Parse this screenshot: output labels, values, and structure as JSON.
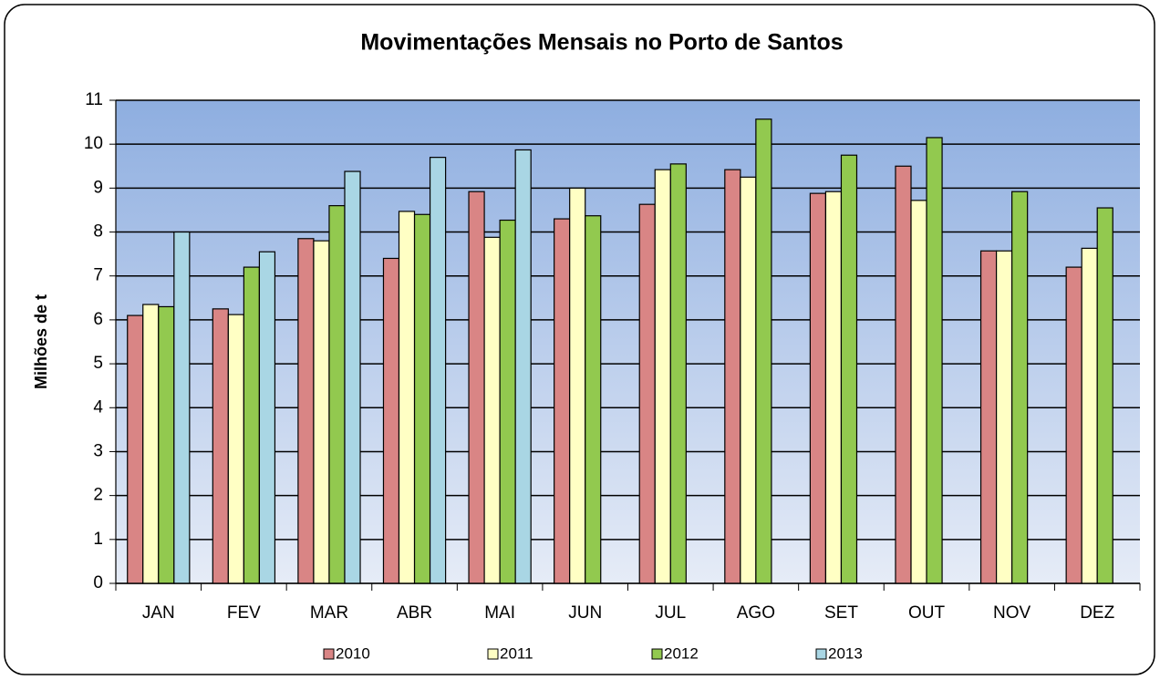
{
  "chart_data": {
    "type": "bar",
    "title": "Movimentações Mensais no Porto de Santos",
    "y_label": "Milhões de t",
    "categories": [
      "JAN",
      "FEV",
      "MAR",
      "ABR",
      "MAI",
      "JUN",
      "JUL",
      "AGO",
      "SET",
      "OUT",
      "NOV",
      "DEZ"
    ],
    "series": [
      {
        "name": "2010",
        "color": "#d98585",
        "values": [
          6.1,
          6.25,
          7.85,
          7.4,
          8.92,
          8.3,
          8.63,
          9.42,
          8.88,
          9.5,
          7.57,
          7.2
        ]
      },
      {
        "name": "2011",
        "color": "#ffffc4",
        "values": [
          6.35,
          6.12,
          7.8,
          8.47,
          7.88,
          9.0,
          9.42,
          9.25,
          8.92,
          8.72,
          7.57,
          7.63
        ]
      },
      {
        "name": "2012",
        "color": "#92c94f",
        "values": [
          6.3,
          7.2,
          8.6,
          8.4,
          8.27,
          8.37,
          9.55,
          10.57,
          9.75,
          10.15,
          8.92,
          8.55
        ]
      },
      {
        "name": "2013",
        "color": "#a9d6e4",
        "values": [
          8.0,
          7.55,
          9.38,
          9.7,
          9.87,
          null,
          null,
          null,
          null,
          null,
          null,
          null
        ]
      }
    ],
    "ylim": [
      0,
      11
    ],
    "yticks": [
      0,
      1,
      2,
      3,
      4,
      5,
      6,
      7,
      8,
      9,
      10,
      11
    ],
    "grid": true,
    "legend": "bottom"
  }
}
